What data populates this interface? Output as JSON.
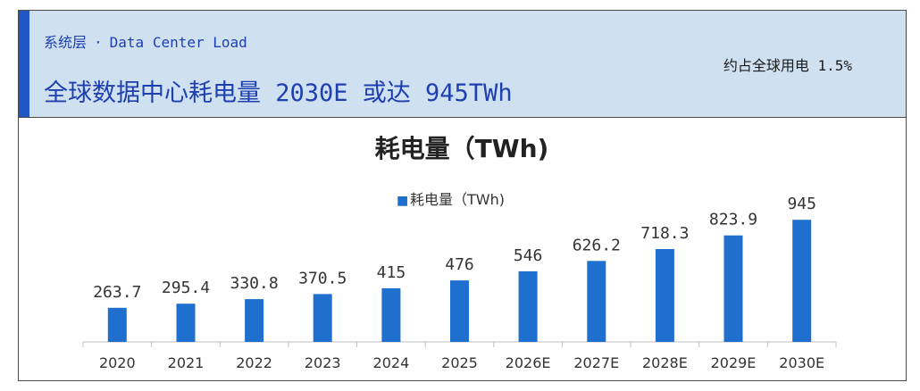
{
  "header": {
    "kicker_category": "系统层",
    "kicker_separator": "·",
    "kicker_subject": "Data Center Load",
    "headline": "全球数据中心耗电量 2030E 或达 945TWh",
    "side_note": "约占全球用电 1.5%"
  },
  "colors": {
    "header_background": "#cfe0f1",
    "accent": "#2156c6",
    "headline_text": "#1d3fb0",
    "bar": "#1f6fce",
    "border": "#4a4a4a"
  },
  "chart_data": {
    "type": "bar",
    "title": "耗电量（TWh)",
    "legend": {
      "placement": "top-center",
      "marker": "■"
    },
    "categories": [
      "2020",
      "2021",
      "2022",
      "2023",
      "2024",
      "2025",
      "2026E",
      "2027E",
      "2028E",
      "2029E",
      "2030E"
    ],
    "series": [
      {
        "name": "耗电量（TWh)",
        "values": [
          263.7,
          295.4,
          330.8,
          370.5,
          415,
          476,
          546,
          626.2,
          718.3,
          823.9,
          945
        ],
        "labels": [
          "263.7",
          "295.4",
          "330.8",
          "370.5",
          "415",
          "476",
          "546",
          "626.2",
          "718.3",
          "823.9",
          "945"
        ]
      }
    ],
    "xlabel": "",
    "ylabel": "",
    "y_axis_visible": false,
    "grid": false
  }
}
